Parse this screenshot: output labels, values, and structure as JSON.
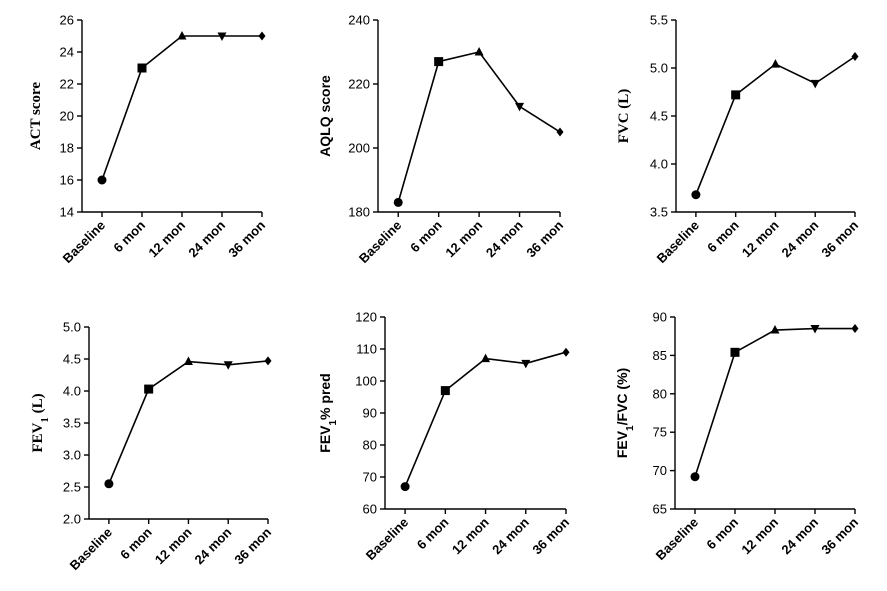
{
  "colors": {
    "line": "#000000",
    "background": "#ffffff"
  },
  "chart_data": [
    {
      "type": "line",
      "ylabel": "ACT score",
      "categories": [
        "Baseline",
        "6 mon",
        "12 mon",
        "24 mon",
        "36 mon"
      ],
      "values": [
        16,
        23,
        25,
        25,
        25
      ],
      "markers": [
        "circle",
        "square",
        "triangle-up",
        "triangle-down",
        "diamond"
      ],
      "ylim": [
        14,
        26
      ],
      "yticks": [
        "14",
        "16",
        "18",
        "20",
        "22",
        "24",
        "26"
      ],
      "grid": false
    },
    {
      "type": "line",
      "ylabel": "AQLQ score",
      "categories": [
        "Baseline",
        "6 mon",
        "12 mon",
        "24 mon",
        "36 mon"
      ],
      "values": [
        183,
        227,
        230,
        213,
        205
      ],
      "markers": [
        "circle",
        "square",
        "triangle-up",
        "triangle-down",
        "diamond"
      ],
      "ylim": [
        180,
        240
      ],
      "yticks": [
        "180",
        "200",
        "220",
        "240"
      ],
      "grid": false
    },
    {
      "type": "line",
      "ylabel": "FVC (L)",
      "categories": [
        "Baseline",
        "6 mon",
        "12 mon",
        "24 mon",
        "36 mon"
      ],
      "values": [
        3.68,
        4.72,
        5.04,
        4.84,
        5.12
      ],
      "markers": [
        "circle",
        "square",
        "triangle-up",
        "triangle-down",
        "diamond"
      ],
      "ylim": [
        3.5,
        5.5
      ],
      "yticks": [
        "3.5",
        "4.0",
        "4.5",
        "5.0",
        "5.5"
      ],
      "grid": false
    },
    {
      "type": "line",
      "ylabel": "FEV1 (L)",
      "categories": [
        "Baseline",
        "6 mon",
        "12 mon",
        "24 mon",
        "36 mon"
      ],
      "values": [
        2.55,
        4.03,
        4.46,
        4.41,
        4.47
      ],
      "markers": [
        "circle",
        "square",
        "triangle-up",
        "triangle-down",
        "diamond"
      ],
      "ylim": [
        2.0,
        5.0
      ],
      "yticks": [
        "2.0",
        "2.5",
        "3.0",
        "3.5",
        "4.0",
        "4.5",
        "5.0"
      ],
      "grid": false
    },
    {
      "type": "line",
      "ylabel": "FEV1% pred",
      "categories": [
        "Baseline",
        "6 mon",
        "12 mon",
        "24 mon",
        "36 mon"
      ],
      "values": [
        67,
        97,
        107,
        105.5,
        109
      ],
      "markers": [
        "circle",
        "square",
        "triangle-up",
        "triangle-down",
        "diamond"
      ],
      "ylim": [
        60,
        120
      ],
      "yticks": [
        "60",
        "70",
        "80",
        "90",
        "100",
        "110",
        "120"
      ],
      "grid": false
    },
    {
      "type": "line",
      "ylabel": "FEV1/FVC (%)",
      "categories": [
        "Baseline",
        "6 mon",
        "12 mon",
        "24 mon",
        "36 mon"
      ],
      "values": [
        69.2,
        85.4,
        88.3,
        88.5,
        88.5
      ],
      "markers": [
        "circle",
        "square",
        "triangle-up",
        "triangle-down",
        "diamond"
      ],
      "ylim": [
        65,
        90
      ],
      "yticks": [
        "65",
        "70",
        "75",
        "80",
        "85",
        "90"
      ],
      "grid": false
    }
  ]
}
